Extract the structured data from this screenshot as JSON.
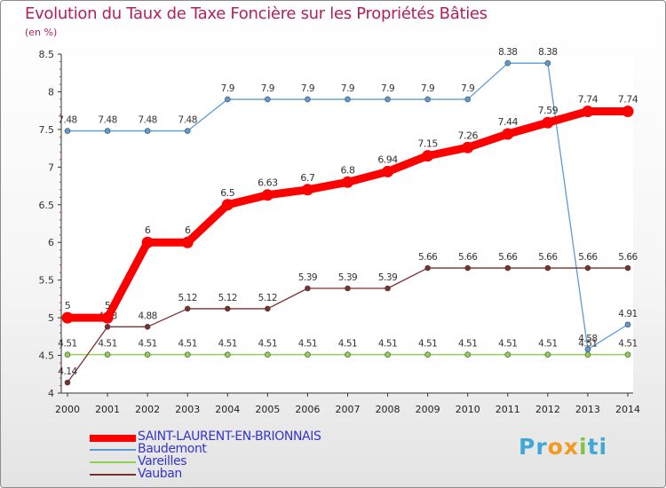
{
  "title": "Evolution du Taux de Taxe Foncière sur les Propriétés Bâties",
  "subtitle": "(en %)",
  "brand": {
    "text": "Proxiti",
    "letters": [
      "P",
      "r",
      "o",
      "x",
      "i",
      "t",
      "i"
    ],
    "colors": [
      "#3fa9d6",
      "#3fa9d6",
      "#f29a1e",
      "#f29a1e",
      "#83c341",
      "#3fa9d6",
      "#3fa9d6"
    ]
  },
  "chart_data": {
    "type": "line",
    "title": "Evolution du Taux de Taxe Foncière sur les Propriétés Bâties",
    "ylabel": "(en %)",
    "xlabel": "",
    "ylim": [
      4,
      8.5
    ],
    "ytick_labels": [
      "4",
      "4.5",
      "5",
      "5.5",
      "6",
      "6.5",
      "7",
      "7.5",
      "8",
      "8.5"
    ],
    "categories": [
      "2000",
      "2001",
      "2002",
      "2003",
      "2004",
      "2005",
      "2006",
      "2007",
      "2008",
      "2009",
      "2010",
      "2011",
      "2012",
      "2013",
      "2014"
    ],
    "legend_position": "bottom-left",
    "grid": false,
    "series": [
      {
        "name": "SAINT-LAURENT-EN-BRIONNAIS",
        "color": "#ff0000",
        "values": [
          5,
          5,
          6,
          6,
          6.5,
          6.63,
          6.7,
          6.8,
          6.94,
          7.15,
          7.26,
          7.44,
          7.59,
          7.74,
          7.74
        ],
        "labels": [
          "5",
          "5",
          "6",
          "6",
          "6.5",
          "6.63",
          "6.7",
          "6.8",
          "6.94",
          "7.15",
          "7.26",
          "7.44",
          "7.59",
          "7.74",
          "7.74"
        ]
      },
      {
        "name": "Baudemont",
        "color": "#5b9bd5",
        "values": [
          7.48,
          7.48,
          7.48,
          7.48,
          7.9,
          7.9,
          7.9,
          7.9,
          7.9,
          7.9,
          7.9,
          8.38,
          8.38,
          4.58,
          4.91
        ],
        "labels": [
          "7.48",
          "7.48",
          "7.48",
          "7.48",
          "7.9",
          "7.9",
          "7.9",
          "7.9",
          "7.9",
          "7.9",
          "7.9",
          "8.38",
          "8.38",
          "4.58",
          "4.91"
        ]
      },
      {
        "name": "Vareilles",
        "color": "#8fd14f",
        "values": [
          4.51,
          4.51,
          4.51,
          4.51,
          4.51,
          4.51,
          4.51,
          4.51,
          4.51,
          4.51,
          4.51,
          4.51,
          4.51,
          4.51,
          4.51
        ],
        "labels": [
          "4.51",
          "4.51",
          "4.51",
          "4.51",
          "4.51",
          "4.51",
          "4.51",
          "4.51",
          "4.51",
          "4.51",
          "4.51",
          "4.51",
          "4.51",
          "4.51",
          "4.51"
        ]
      },
      {
        "name": "Vauban",
        "color": "#7b2f2f",
        "values": [
          4.14,
          4.88,
          4.88,
          5.12,
          5.12,
          5.12,
          5.39,
          5.39,
          5.39,
          5.66,
          5.66,
          5.66,
          5.66,
          5.66,
          5.66
        ],
        "labels": [
          "4.14",
          "4.88",
          "4.88",
          "5.12",
          "5.12",
          "5.12",
          "5.39",
          "5.39",
          "5.39",
          "5.66",
          "5.66",
          "5.66",
          "5.66",
          "5.66",
          "5.66"
        ]
      }
    ]
  }
}
